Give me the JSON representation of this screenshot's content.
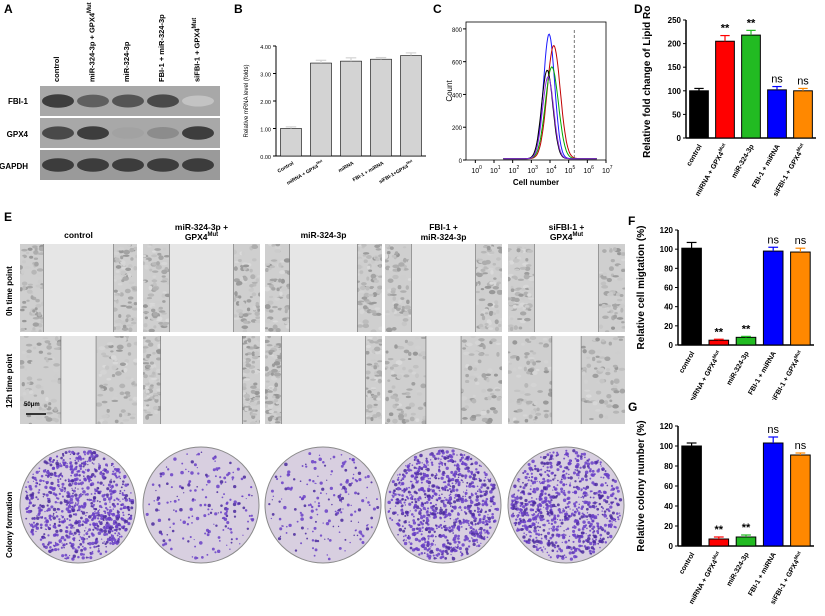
{
  "panels": {
    "a": "A",
    "b": "B",
    "c": "C",
    "d": "D",
    "e": "E",
    "f": "F",
    "g": "G"
  },
  "blot": {
    "lanes": [
      "control",
      "miR-324-3p + GPX4",
      "miR-324-3p",
      "FBI-1 + miR-324-3p",
      "siFBI-1 + GPX4"
    ],
    "lane_sup": {
      "1": "Mut",
      "4": "Mut"
    },
    "rows": [
      "FBI-1",
      "GPX4",
      "GAPDH"
    ],
    "intensities": {
      "FBI-1": [
        0.85,
        0.7,
        0.75,
        0.8,
        0.25
      ],
      "GPX4": [
        0.8,
        0.85,
        0.4,
        0.5,
        0.85
      ],
      "GAPDH": [
        0.85,
        0.85,
        0.85,
        0.85,
        0.85
      ]
    }
  },
  "chart_b": {
    "type": "bar",
    "ylabel": "Relative mRNA level (folds)",
    "categories": [
      "Control",
      "miRNA + GPX4",
      "miRNA",
      "FBI-1 + miRNA",
      "siFBI-1+GPX4"
    ],
    "category_sup": [
      "",
      "Mut",
      "",
      "",
      "Mut"
    ],
    "values": [
      1.0,
      3.38,
      3.45,
      3.52,
      3.65
    ],
    "errors": [
      0.06,
      0.1,
      0.12,
      0.06,
      0.1
    ],
    "yticks": [
      "0.00",
      "1.00",
      "2.00",
      "3.00",
      "4.00"
    ],
    "ylim": [
      0,
      4
    ],
    "color": "#d3d3d3"
  },
  "chart_c": {
    "type": "line",
    "ylabel": "Count",
    "xlabel": "Cell number",
    "yticks": [
      "0",
      "200",
      "400",
      "600",
      "800"
    ],
    "xticks_base": "10",
    "xticks_exp": [
      "0",
      "1",
      "2",
      "3",
      "4",
      "5",
      "6",
      "7"
    ],
    "series": [
      {
        "color": "#1a1aff",
        "peak_x": 3.95,
        "peak_y": 760,
        "width": 0.3
      },
      {
        "color": "#c00000",
        "peak_x": 4.2,
        "peak_y": 690,
        "width": 0.35
      },
      {
        "color": "#00aa00",
        "peak_x": 4.1,
        "peak_y": 560,
        "width": 0.35
      },
      {
        "color": "#000000",
        "peak_x": 3.85,
        "peak_y": 540,
        "width": 0.3
      },
      {
        "color": "#8a2be2",
        "peak_x": 3.9,
        "peak_y": 500,
        "width": 0.3
      }
    ],
    "gate_x": 5.8
  },
  "chart_d": {
    "type": "bar",
    "ylabel": "Relative fold change of Lipid Ros",
    "categories": [
      "control",
      "miRNA + GPX4",
      "miR-324-3p",
      "FBI-1 + miRNA",
      "siFBI-1 + GPX4"
    ],
    "category_sup": [
      "",
      "Mut",
      "",
      "",
      "Mut"
    ],
    "values": [
      100,
      205,
      218,
      102,
      100
    ],
    "errors": [
      5,
      12,
      10,
      7,
      5
    ],
    "annotations": [
      "",
      "**",
      "**",
      "ns",
      "ns"
    ],
    "yticks": [
      "0",
      "50",
      "100",
      "150",
      "200",
      "250"
    ],
    "ylim": [
      0,
      250
    ],
    "colors": [
      "#000000",
      "#ff0000",
      "#22bb22",
      "#0000ff",
      "#ff8800"
    ]
  },
  "chart_f": {
    "type": "bar",
    "ylabel": "Relative cell migtation (%)",
    "categories": [
      "control",
      "miRNA + GPX4",
      "miR-324-3p",
      "FBI-1 + miRNA",
      "siFBI-1 + GPX4"
    ],
    "category_sup": [
      "",
      "Mut",
      "",
      "",
      "Mut"
    ],
    "values": [
      101,
      5,
      8,
      98,
      97
    ],
    "errors": [
      6,
      1,
      1,
      4,
      4
    ],
    "annotations": [
      "",
      "**",
      "**",
      "ns",
      "ns"
    ],
    "yticks": [
      "0",
      "20",
      "40",
      "60",
      "80",
      "100",
      "120"
    ],
    "ylim": [
      0,
      120
    ],
    "colors": [
      "#000000",
      "#ff0000",
      "#22bb22",
      "#0000ff",
      "#ff8800"
    ]
  },
  "chart_g": {
    "type": "bar",
    "ylabel": "Relative colony number (%)",
    "categories": [
      "control",
      "miRNA + GPX4",
      "miR-324-3p",
      "FBI-1 + miRNA",
      "siFBI-1 + GPX4"
    ],
    "category_sup": [
      "",
      "Mut",
      "",
      "",
      "Mut"
    ],
    "values": [
      100,
      7,
      9,
      103,
      91
    ],
    "errors": [
      3,
      2,
      2,
      6,
      2
    ],
    "annotations": [
      "",
      "**",
      "**",
      "ns",
      "ns"
    ],
    "yticks": [
      "0",
      "20",
      "40",
      "60",
      "80",
      "100",
      "120"
    ],
    "ylim": [
      0,
      120
    ],
    "colors": [
      "#000000",
      "#ff0000",
      "#22bb22",
      "#0000ff",
      "#ff8800"
    ]
  },
  "panel_e": {
    "columns": [
      {
        "line1": "control",
        "line2": ""
      },
      {
        "line1": "miR-324-3p +",
        "line2": "GPX4",
        "sup": "Mut"
      },
      {
        "line1": "miR-324-3p",
        "line2": ""
      },
      {
        "line1": "FBI-1 +",
        "line2": "miR-324-3p"
      },
      {
        "line1": "siFBI-1 +",
        "line2": "GPX4",
        "sup": "Mut"
      }
    ],
    "rows": [
      "0h time point",
      "12h time point",
      "Colony formation"
    ],
    "scalebar": "50μm",
    "gap_0h": [
      0.6,
      0.55,
      0.58,
      0.55,
      0.55
    ],
    "gap_12h": [
      0.3,
      0.7,
      0.72,
      0.3,
      0.25
    ],
    "colony_density": [
      0.9,
      0.15,
      0.15,
      0.95,
      0.9
    ]
  }
}
